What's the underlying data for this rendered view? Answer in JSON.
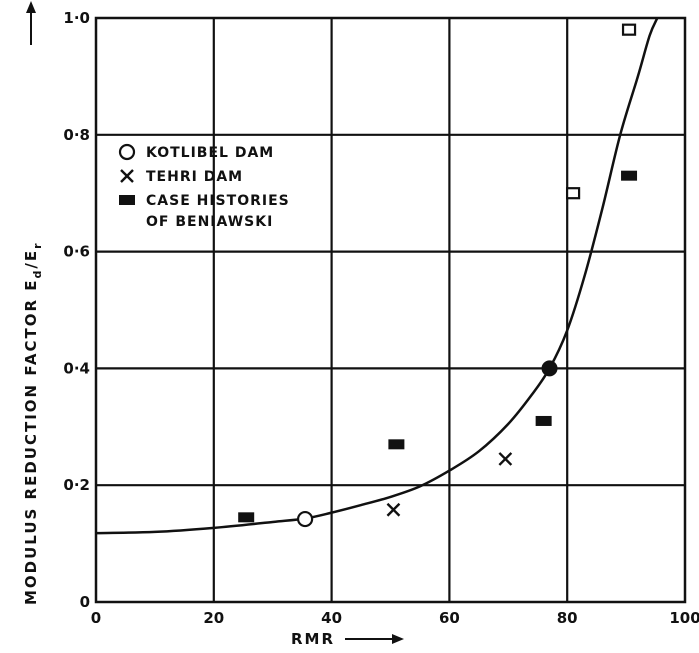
{
  "chart_data": {
    "type": "scatter",
    "title": "",
    "xlabel": "RMR",
    "ylabel": "MODULUS  REDUCTION FACTOR  E",
    "ylabel_sub_d": "d",
    "ylabel_slash": "/E",
    "ylabel_sub_r": "r",
    "xlim": [
      0,
      100
    ],
    "ylim": [
      0,
      1.0
    ],
    "x_ticks": [
      0,
      20,
      40,
      60,
      80,
      100
    ],
    "y_ticks": [
      0,
      0.2,
      0.4,
      0.6,
      0.8,
      1.0
    ],
    "y_tick_labels": [
      "0",
      "0·2",
      "0·4",
      "0·6",
      "0·8",
      "1·0"
    ],
    "grid": true,
    "legend_position": "top-left",
    "legend": [
      {
        "marker": "open-circle",
        "lines": [
          "KOTLIBEL DAM"
        ]
      },
      {
        "marker": "cross",
        "lines": [
          "TEHRI DAM"
        ]
      },
      {
        "marker": "filled-rect",
        "lines": [
          "CASE HISTORIES",
          "OF BENIAWSKI"
        ]
      }
    ],
    "series": [
      {
        "marker": "open-circle",
        "points": [
          [
            35.5,
            0.142
          ]
        ]
      },
      {
        "marker": "cross",
        "points": [
          [
            50.5,
            0.158
          ],
          [
            69.5,
            0.245
          ]
        ]
      },
      {
        "marker": "filled-rect",
        "points": [
          [
            25.5,
            0.145
          ],
          [
            51,
            0.27
          ],
          [
            76,
            0.31
          ],
          [
            90.5,
            0.73
          ]
        ]
      },
      {
        "marker": "open-square",
        "points": [
          [
            81,
            0.7
          ],
          [
            90.5,
            0.98
          ]
        ]
      },
      {
        "marker": "filled-circle",
        "points": [
          [
            77,
            0.4
          ]
        ]
      }
    ],
    "fit_curve": [
      [
        0,
        0.118
      ],
      [
        10,
        0.12
      ],
      [
        20,
        0.127
      ],
      [
        30,
        0.137
      ],
      [
        35.5,
        0.143
      ],
      [
        40,
        0.153
      ],
      [
        45,
        0.166
      ],
      [
        50,
        0.18
      ],
      [
        55,
        0.198
      ],
      [
        60,
        0.225
      ],
      [
        65,
        0.258
      ],
      [
        70,
        0.305
      ],
      [
        74,
        0.355
      ],
      [
        77,
        0.4
      ],
      [
        80,
        0.465
      ],
      [
        83,
        0.56
      ],
      [
        86,
        0.675
      ],
      [
        89,
        0.8
      ],
      [
        92,
        0.9
      ],
      [
        94,
        0.97
      ],
      [
        95.3,
        1.0
      ]
    ]
  }
}
